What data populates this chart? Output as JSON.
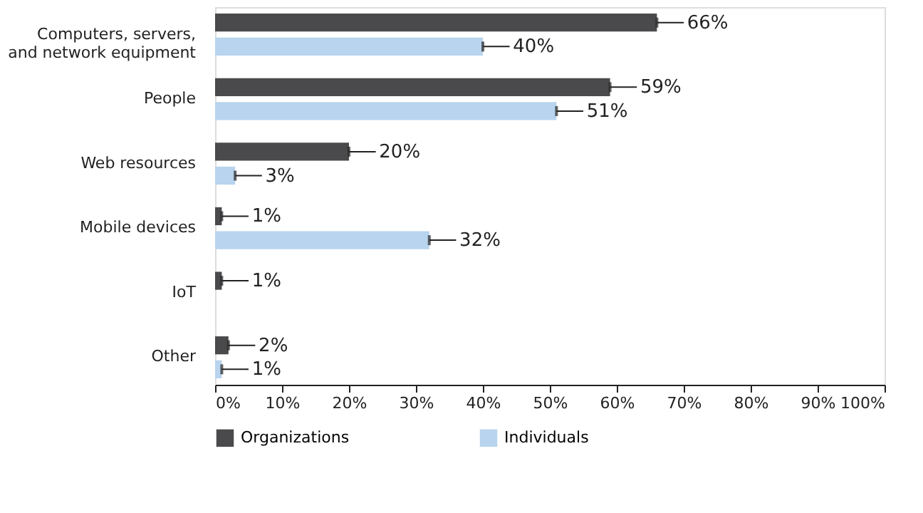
{
  "chart_data": {
    "type": "bar",
    "orientation": "horizontal",
    "categories": [
      "Computers, servers, and network equipment",
      "People",
      "Web resources",
      "Mobile devices",
      "IoT",
      "Other"
    ],
    "series": [
      {
        "name": "Organizations",
        "color": "#4a4a4c",
        "values": [
          66,
          59,
          20,
          1,
          1,
          2
        ],
        "value_labels": [
          "66%",
          "59%",
          "20%",
          "1%",
          "1%",
          "2%"
        ]
      },
      {
        "name": "Individuals",
        "color": "#b8d4ee",
        "values": [
          40,
          51,
          3,
          32,
          null,
          1
        ],
        "value_labels": [
          "40%",
          "51%",
          "3%",
          "32%",
          null,
          "1%"
        ]
      }
    ],
    "xlim": [
      0,
      100
    ],
    "xticks": [
      {
        "value": 0,
        "label": "0%"
      },
      {
        "value": 10,
        "label": "10%"
      },
      {
        "value": 20,
        "label": "20%"
      },
      {
        "value": 30,
        "label": "30%"
      },
      {
        "value": 40,
        "label": "40%"
      },
      {
        "value": 50,
        "label": "50%"
      },
      {
        "value": 60,
        "label": "60%"
      },
      {
        "value": 70,
        "label": "70%"
      },
      {
        "value": 80,
        "label": "80%"
      },
      {
        "value": 90,
        "label": "90%"
      },
      {
        "value": 100,
        "label": "100%"
      }
    ],
    "grid": false,
    "legend": "bottom left"
  }
}
